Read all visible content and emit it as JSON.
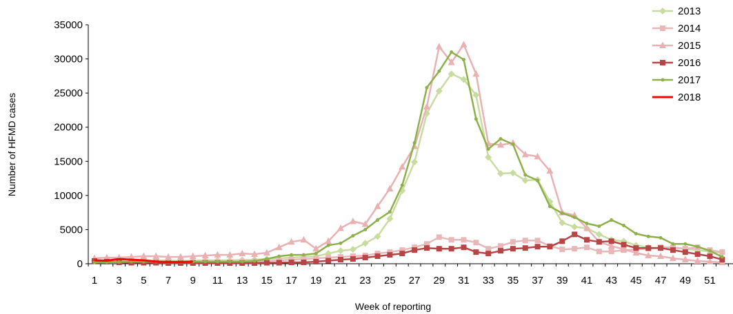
{
  "chart_data": {
    "type": "line",
    "title": "",
    "xlabel": "Week of reporting",
    "ylabel": "Number of HFMD cases",
    "ylim": [
      0,
      35000
    ],
    "xlim": [
      1,
      52
    ],
    "y_ticks": [
      "0",
      "5000",
      "10000",
      "15000",
      "20000",
      "25000",
      "30000",
      "35000"
    ],
    "x_ticks": [
      "1",
      "3",
      "5",
      "7",
      "9",
      "11",
      "13",
      "15",
      "17",
      "19",
      "21",
      "23",
      "25",
      "27",
      "29",
      "31",
      "33",
      "35",
      "37",
      "39",
      "41",
      "43",
      "45",
      "47",
      "49",
      "51"
    ],
    "grid": false,
    "legend_position": "top-right",
    "series": [
      {
        "name": "2013",
        "color": "#c8dca0",
        "marker": "diamond",
        "values": [
          500,
          400,
          500,
          600,
          500,
          500,
          450,
          400,
          450,
          500,
          500,
          500,
          550,
          600,
          700,
          800,
          900,
          1000,
          1100,
          1500,
          1900,
          2100,
          3000,
          4000,
          6600,
          10700,
          14900,
          22000,
          25300,
          27800,
          27000,
          24700,
          15600,
          13200,
          13300,
          12200,
          12300,
          9100,
          6000,
          5400,
          5200,
          4300,
          3500,
          3300,
          2700,
          2400,
          2300,
          2300,
          2200,
          2000,
          1800,
          1600
        ]
      },
      {
        "name": "2014",
        "color": "#e8b8b8",
        "marker": "square",
        "values": [
          400,
          350,
          300,
          300,
          300,
          300,
          250,
          250,
          250,
          300,
          300,
          300,
          300,
          350,
          400,
          500,
          600,
          700,
          800,
          900,
          1000,
          1100,
          1200,
          1500,
          1700,
          2000,
          2400,
          2900,
          3900,
          3500,
          3500,
          3100,
          2200,
          2600,
          3200,
          3400,
          3400,
          2600,
          2100,
          2200,
          2400,
          1800,
          1800,
          2000,
          2100,
          2200,
          2400,
          2400,
          2200,
          2400,
          2000,
          1700
        ]
      },
      {
        "name": "2015",
        "color": "#e9b1b1",
        "marker": "triangle",
        "values": [
          800,
          900,
          900,
          1000,
          1100,
          1100,
          1000,
          1000,
          1100,
          1200,
          1300,
          1300,
          1500,
          1400,
          1600,
          2400,
          3200,
          3500,
          2200,
          3300,
          5200,
          6200,
          5800,
          8400,
          11000,
          14200,
          17200,
          23000,
          31800,
          29500,
          32100,
          27800,
          17600,
          17400,
          17700,
          16000,
          15700,
          13600,
          7500,
          7100,
          5200,
          3200,
          2600,
          2100,
          1600,
          1200,
          1100,
          800,
          600,
          400,
          300,
          200
        ]
      },
      {
        "name": "2016",
        "color": "#b84545",
        "marker": "square",
        "values": [
          400,
          300,
          200,
          150,
          150,
          150,
          100,
          100,
          100,
          100,
          100,
          100,
          100,
          100,
          150,
          150,
          200,
          200,
          300,
          450,
          600,
          700,
          900,
          1100,
          1300,
          1500,
          2000,
          2300,
          2200,
          2200,
          2400,
          1700,
          1500,
          1900,
          2200,
          2300,
          2500,
          2500,
          3300,
          4300,
          3500,
          3200,
          3300,
          2800,
          2300,
          2300,
          2300,
          2000,
          1700,
          1400,
          1100,
          600
        ]
      },
      {
        "name": "2017",
        "color": "#8db04a",
        "marker": "dot",
        "values": [
          200,
          200,
          250,
          300,
          300,
          300,
          300,
          300,
          300,
          300,
          300,
          300,
          300,
          400,
          700,
          1100,
          1300,
          1300,
          1500,
          2700,
          3000,
          4100,
          5000,
          6400,
          7600,
          11500,
          17700,
          25800,
          28200,
          31000,
          29900,
          21200,
          16800,
          18300,
          17500,
          13000,
          12200,
          8400,
          7400,
          6800,
          5900,
          5500,
          6400,
          5600,
          4400,
          4000,
          3800,
          2900,
          2900,
          2500,
          1900,
          1000
        ]
      },
      {
        "name": "2018",
        "color": "#ff0000",
        "marker": "none",
        "values": [
          500,
          450,
          700,
          600,
          500,
          300,
          250,
          250,
          300,
          null,
          null,
          null,
          null,
          null,
          null,
          null,
          null,
          null,
          null,
          null,
          null,
          null,
          null,
          null,
          null,
          null,
          null,
          null,
          null,
          null,
          null,
          null,
          null,
          null,
          null,
          null,
          null,
          null,
          null,
          null,
          null,
          null,
          null,
          null,
          null,
          null,
          null,
          null,
          null,
          null,
          null,
          null
        ]
      }
    ]
  }
}
